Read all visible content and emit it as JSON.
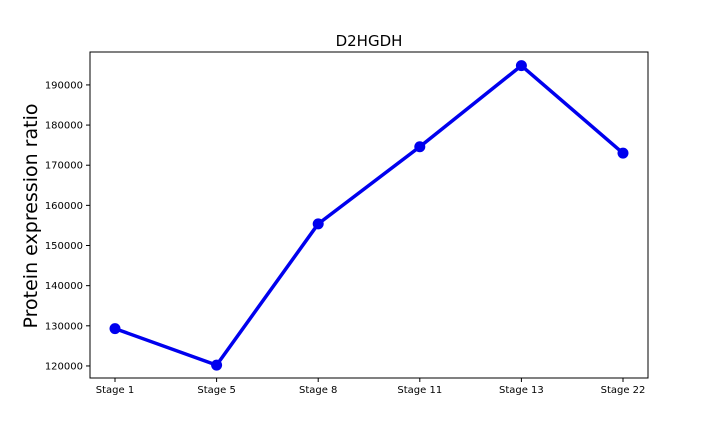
{
  "chart_data": {
    "type": "line",
    "title": "D2HGDH",
    "xlabel": "",
    "ylabel": "Protein expression ratio",
    "categories": [
      "Stage 1",
      "Stage 5",
      "Stage 8",
      "Stage 11",
      "Stage 13",
      "Stage 22"
    ],
    "series": [
      {
        "values": [
          129300,
          120200,
          155400,
          174600,
          194800,
          173000
        ],
        "color": "#0000ee"
      }
    ],
    "ylim": [
      117000,
      198200
    ],
    "yticks": [
      120000,
      130000,
      140000,
      150000,
      160000,
      170000,
      180000,
      190000
    ],
    "ytick_labels": [
      "120000",
      "130000",
      "140000",
      "150000",
      "160000",
      "170000",
      "180000",
      "190000"
    ],
    "grid": false,
    "legend": "none"
  }
}
